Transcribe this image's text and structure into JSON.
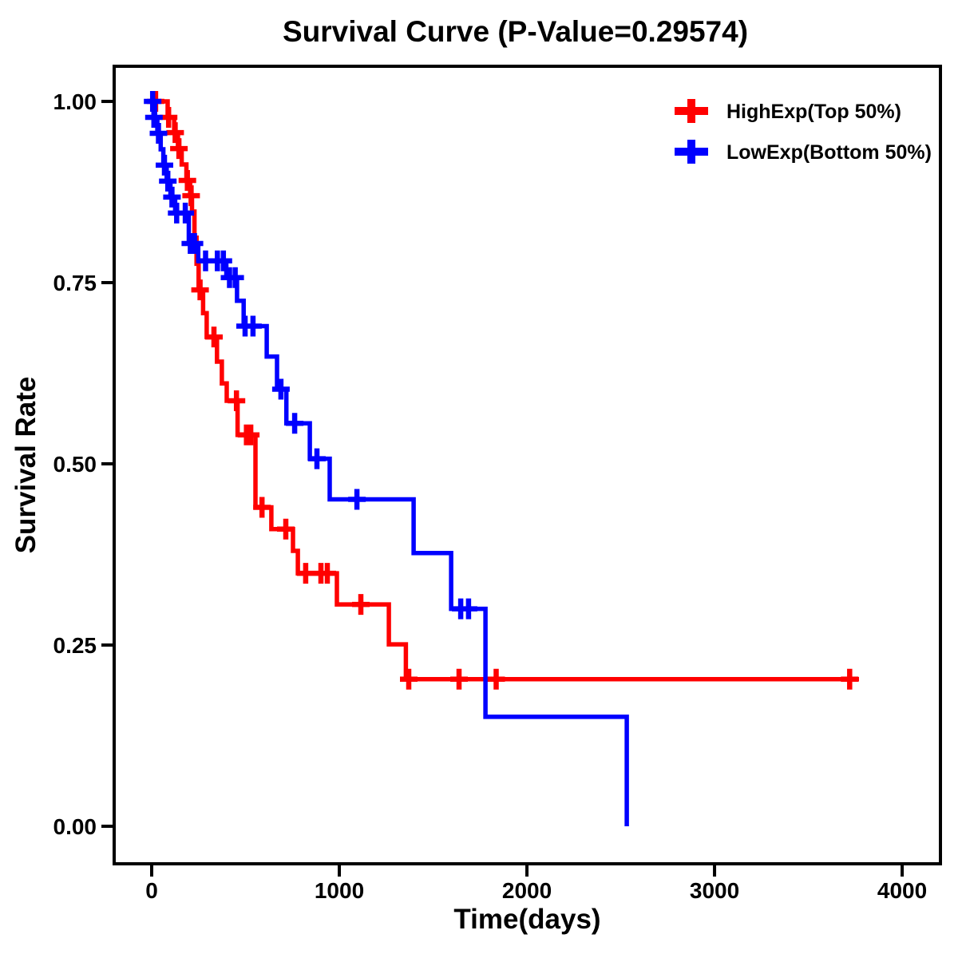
{
  "figure": {
    "title": "Survival Curve (P-Value=0.29574)",
    "background_color": "#FFFFFF",
    "text_color": "#000000"
  },
  "chart_data": {
    "type": "line",
    "subtype": "kaplan-meier-step",
    "title": "Survival Curve (P-Value=0.29574)",
    "p_value_text": "P-Value=0.29574",
    "xlabel": "Time(days)",
    "ylabel": "Survival Rate",
    "grid": false,
    "legend_position": "top-right-inside",
    "axis_color": "#000000",
    "xlim": [
      -200,
      4204
    ],
    "ylim": [
      -0.0518,
      1.0485
    ],
    "x_ticks": [
      {
        "value": 0,
        "label": "0"
      },
      {
        "value": 1000,
        "label": "1000"
      },
      {
        "value": 2000,
        "label": "2000"
      },
      {
        "value": 3000,
        "label": "3000"
      },
      {
        "value": 4000,
        "label": "4000"
      }
    ],
    "y_ticks": [
      {
        "value": 0.0,
        "label": "0.00"
      },
      {
        "value": 0.25,
        "label": "0.25"
      },
      {
        "value": 0.5,
        "label": "0.50"
      },
      {
        "value": 0.75,
        "label": "0.75"
      },
      {
        "value": 1.0,
        "label": "1.00"
      }
    ],
    "series": [
      {
        "name": "HighExp(Top 50%)",
        "color": "#FF0000",
        "steps": [
          [
            0,
            1.0
          ],
          [
            85,
            0.978
          ],
          [
            120,
            0.957
          ],
          [
            140,
            0.935
          ],
          [
            160,
            0.913
          ],
          [
            185,
            0.891
          ],
          [
            205,
            0.87
          ],
          [
            215,
            0.848
          ],
          [
            228,
            0.812
          ],
          [
            239,
            0.776
          ],
          [
            250,
            0.74
          ],
          [
            274,
            0.708
          ],
          [
            293,
            0.675
          ],
          [
            348,
            0.641
          ],
          [
            374,
            0.611
          ],
          [
            400,
            0.587
          ],
          [
            458,
            0.54
          ],
          [
            553,
            0.44
          ],
          [
            638,
            0.41
          ],
          [
            753,
            0.38
          ],
          [
            779,
            0.349
          ],
          [
            987,
            0.306
          ],
          [
            1264,
            0.251
          ],
          [
            1355,
            0.203
          ],
          [
            3770,
            0.203
          ]
        ],
        "censors": [
          [
            21,
            1.0
          ],
          [
            90,
            0.978
          ],
          [
            125,
            0.957
          ],
          [
            145,
            0.935
          ],
          [
            190,
            0.891
          ],
          [
            210,
            0.87
          ],
          [
            258,
            0.74
          ],
          [
            332,
            0.675
          ],
          [
            452,
            0.587
          ],
          [
            505,
            0.54
          ],
          [
            528,
            0.54
          ],
          [
            588,
            0.44
          ],
          [
            715,
            0.41
          ],
          [
            821,
            0.349
          ],
          [
            902,
            0.349
          ],
          [
            936,
            0.349
          ],
          [
            1115,
            0.306
          ],
          [
            1370,
            0.203
          ],
          [
            1638,
            0.203
          ],
          [
            1836,
            0.203
          ],
          [
            3720,
            0.203
          ]
        ]
      },
      {
        "name": "LowExp(Bottom 50%)",
        "color": "#0000FF",
        "steps": [
          [
            0,
            1.0
          ],
          [
            18,
            0.978
          ],
          [
            30,
            0.956
          ],
          [
            48,
            0.934
          ],
          [
            62,
            0.912
          ],
          [
            80,
            0.89
          ],
          [
            100,
            0.868
          ],
          [
            125,
            0.846
          ],
          [
            198,
            0.804
          ],
          [
            248,
            0.78
          ],
          [
            398,
            0.757
          ],
          [
            455,
            0.725
          ],
          [
            490,
            0.69
          ],
          [
            613,
            0.648
          ],
          [
            668,
            0.603
          ],
          [
            718,
            0.556
          ],
          [
            843,
            0.507
          ],
          [
            949,
            0.451
          ],
          [
            1396,
            0.377
          ],
          [
            1596,
            0.3
          ],
          [
            1779,
            0.151
          ],
          [
            2532,
            0.0
          ]
        ],
        "censors": [
          [
            5,
            1.0
          ],
          [
            12,
            0.978
          ],
          [
            36,
            0.956
          ],
          [
            68,
            0.912
          ],
          [
            86,
            0.89
          ],
          [
            108,
            0.868
          ],
          [
            133,
            0.846
          ],
          [
            179,
            0.846
          ],
          [
            206,
            0.804
          ],
          [
            228,
            0.804
          ],
          [
            287,
            0.78
          ],
          [
            350,
            0.78
          ],
          [
            382,
            0.78
          ],
          [
            415,
            0.757
          ],
          [
            445,
            0.757
          ],
          [
            498,
            0.69
          ],
          [
            540,
            0.69
          ],
          [
            689,
            0.603
          ],
          [
            762,
            0.556
          ],
          [
            881,
            0.507
          ],
          [
            1094,
            0.451
          ],
          [
            1647,
            0.3
          ],
          [
            1689,
            0.3
          ]
        ]
      }
    ]
  }
}
